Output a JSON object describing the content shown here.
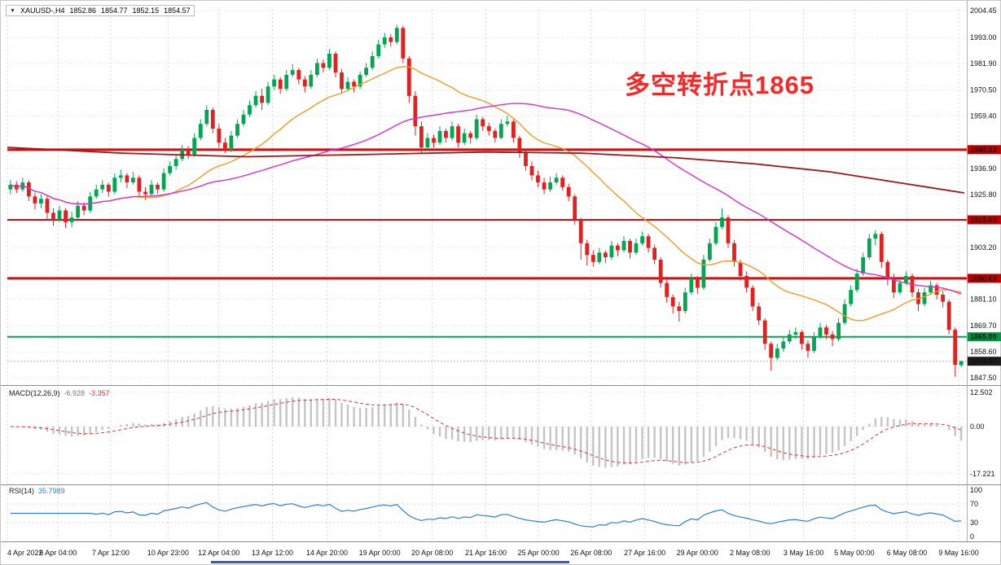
{
  "window": {
    "symbol": "XAUUSD-,H4",
    "open": "1852.86",
    "high": "1854.77",
    "low": "1852.15",
    "close": "1854.57",
    "dropdown_icon": "▼"
  },
  "annotation": {
    "text": "多空转折点1865",
    "color": "#f42a2a"
  },
  "indicators": {
    "macd": {
      "label": "MACD(12,26,9)",
      "value_main": "-6.928",
      "value_signal": "-3.357",
      "axis_labels": [
        "12.502",
        "0.00",
        "-17.221"
      ]
    },
    "rsi": {
      "label": "RSI(14)",
      "value": "35.7989",
      "axis_labels": [
        "100",
        "70",
        "30",
        "0"
      ]
    }
  },
  "price_axis": {
    "grid_labels": [
      "2004.45",
      "1993.00",
      "1981.90",
      "1970.50",
      "1959.40",
      "1936.90",
      "1925.80",
      "1903.20",
      "1881.10",
      "1869.70",
      "1858.60",
      "1847.50"
    ]
  },
  "levels": [
    {
      "label": "1945.00",
      "price": 1945.0,
      "line_color": "#cc0f0f",
      "box_color": "#c00000",
      "width": 3,
      "style": "solid",
      "type": "resistance"
    },
    {
      "label": "1915.00",
      "price": 1915.0,
      "line_color": "#cc0f0f",
      "box_color": "#c00000",
      "width": 2,
      "style": "solid",
      "type": "resistance"
    },
    {
      "label": "1890.00",
      "price": 1890.0,
      "line_color": "#cc0f0f",
      "box_color": "#c00000",
      "width": 3,
      "style": "solid",
      "type": "resistance"
    },
    {
      "label": "1865.00",
      "price": 1865.0,
      "line_color": "#00a651",
      "box_color": "#009442",
      "width": 2,
      "style": "solid",
      "type": "support"
    },
    {
      "label": "1854.57",
      "price": 1854.57,
      "line_color": "#b5b5b5",
      "box_color": "#1c1c1c",
      "width": 1,
      "style": "dotted",
      "type": "last-price"
    }
  ],
  "time_axis": {
    "labels": [
      {
        "text": "4 Apr 2022",
        "f": 0.0
      },
      {
        "text": "6 Apr 04:00",
        "f": 0.053
      },
      {
        "text": "7 Apr 12:00",
        "f": 0.108
      },
      {
        "text": "10 Apr 23:00",
        "f": 0.168
      },
      {
        "text": "12 Apr 04:00",
        "f": 0.221
      },
      {
        "text": "13 Apr 12:00",
        "f": 0.277
      },
      {
        "text": "14 Apr 20:00",
        "f": 0.334
      },
      {
        "text": "19 Apr 00:00",
        "f": 0.389
      },
      {
        "text": "20 Apr 08:00",
        "f": 0.444
      },
      {
        "text": "21 Apr 16:00",
        "f": 0.5
      },
      {
        "text": "25 Apr 00:00",
        "f": 0.555
      },
      {
        "text": "26 Apr 08:00",
        "f": 0.61
      },
      {
        "text": "27 Apr 16:00",
        "f": 0.666
      },
      {
        "text": "29 Apr 00:00",
        "f": 0.721
      },
      {
        "text": "2 May 08:00",
        "f": 0.776
      },
      {
        "text": "3 May 16:00",
        "f": 0.832
      },
      {
        "text": "5 May 00:00",
        "f": 0.885
      },
      {
        "text": "6 May 08:00",
        "f": 0.94
      },
      {
        "text": "9 May 16:00",
        "f": 0.994
      }
    ]
  },
  "scrollbar": {
    "color": "#3b55c4"
  },
  "chart_data": {
    "type": "candlestick",
    "title": "XAUUSD H4 candlestick chart with MACD(12,26,9) and RSI(14)",
    "symbol": "XAUUSD",
    "timeframe": "H4",
    "ylim": [
      1847.5,
      2004.45
    ],
    "up_color": "#00a651",
    "down_color": "#e32020",
    "candles": [
      [
        1928,
        1932,
        1926,
        1930
      ],
      [
        1930,
        1931.5,
        1926.5,
        1928
      ],
      [
        1928,
        1933,
        1927,
        1931
      ],
      [
        1931,
        1932,
        1923,
        1925
      ],
      [
        1925,
        1926.5,
        1919.5,
        1922
      ],
      [
        1922,
        1926,
        1920,
        1924
      ],
      [
        1924,
        1925,
        1915.5,
        1918
      ],
      [
        1918,
        1920,
        1912.5,
        1915
      ],
      [
        1915,
        1921,
        1914,
        1919
      ],
      [
        1919,
        1920,
        1911.5,
        1914
      ],
      [
        1914,
        1918.5,
        1912,
        1916
      ],
      [
        1916,
        1923,
        1915,
        1921
      ],
      [
        1921,
        1922.5,
        1917,
        1919
      ],
      [
        1919,
        1927,
        1918,
        1925
      ],
      [
        1925,
        1930,
        1924,
        1928
      ],
      [
        1928,
        1932,
        1926.5,
        1930
      ],
      [
        1930,
        1931,
        1925,
        1927
      ],
      [
        1927,
        1935,
        1926,
        1933
      ],
      [
        1933,
        1936.5,
        1931,
        1934
      ],
      [
        1934,
        1935,
        1928.5,
        1931
      ],
      [
        1931,
        1935.5,
        1930,
        1933
      ],
      [
        1933,
        1934,
        1925,
        1927
      ],
      [
        1927,
        1929,
        1923.5,
        1926
      ],
      [
        1926,
        1932,
        1925,
        1930
      ],
      [
        1930,
        1931,
        1926,
        1928
      ],
      [
        1928,
        1937,
        1927,
        1935
      ],
      [
        1935,
        1940,
        1934,
        1938
      ],
      [
        1938,
        1943,
        1936.5,
        1941
      ],
      [
        1941,
        1947,
        1940,
        1945
      ],
      [
        1945,
        1946.5,
        1941,
        1943
      ],
      [
        1943,
        1952,
        1942,
        1950
      ],
      [
        1950,
        1958,
        1949,
        1956
      ],
      [
        1956,
        1964,
        1955,
        1962
      ],
      [
        1962,
        1963,
        1952,
        1954
      ],
      [
        1954,
        1956,
        1946,
        1948
      ],
      [
        1948,
        1950,
        1943.5,
        1945
      ],
      [
        1945,
        1953,
        1944,
        1951
      ],
      [
        1951,
        1958,
        1950,
        1956
      ],
      [
        1956,
        1962,
        1955,
        1960
      ],
      [
        1960,
        1966,
        1959,
        1964
      ],
      [
        1964,
        1970,
        1963,
        1968
      ],
      [
        1968,
        1971,
        1962,
        1965
      ],
      [
        1965,
        1974,
        1964,
        1972
      ],
      [
        1972,
        1977,
        1970.5,
        1975
      ],
      [
        1975,
        1976,
        1969,
        1971
      ],
      [
        1971,
        1979,
        1970,
        1977
      ],
      [
        1977,
        1981.5,
        1976,
        1979
      ],
      [
        1979,
        1980,
        1973,
        1975
      ],
      [
        1975,
        1976.5,
        1969.5,
        1972
      ],
      [
        1972,
        1979,
        1971,
        1977
      ],
      [
        1977,
        1984,
        1976,
        1982
      ],
      [
        1982,
        1983.5,
        1978,
        1980
      ],
      [
        1980,
        1988,
        1979,
        1986
      ],
      [
        1986,
        1987,
        1976,
        1978
      ],
      [
        1978,
        1979.5,
        1969,
        1971
      ],
      [
        1971,
        1976,
        1970,
        1974
      ],
      [
        1974,
        1975,
        1969.5,
        1972
      ],
      [
        1972,
        1978.5,
        1971,
        1977
      ],
      [
        1977,
        1982,
        1976,
        1980
      ],
      [
        1980,
        1987,
        1979,
        1985
      ],
      [
        1985,
        1992,
        1984,
        1990
      ],
      [
        1990,
        1995,
        1988.5,
        1993
      ],
      [
        1993,
        1994.5,
        1989,
        1991
      ],
      [
        1991,
        1998.4,
        1990,
        1997
      ],
      [
        1997,
        1998,
        1982,
        1984
      ],
      [
        1984,
        1985,
        1965,
        1968
      ],
      [
        1968,
        1970,
        1951,
        1955
      ],
      [
        1955,
        1957,
        1943.5,
        1946
      ],
      [
        1946,
        1952,
        1945,
        1950
      ],
      [
        1950,
        1951.5,
        1946,
        1948
      ],
      [
        1948,
        1955,
        1947,
        1953
      ],
      [
        1953,
        1954,
        1948,
        1950
      ],
      [
        1950,
        1957,
        1949,
        1955
      ],
      [
        1955,
        1956,
        1946,
        1948
      ],
      [
        1948,
        1954,
        1947,
        1952
      ],
      [
        1952,
        1953,
        1947.5,
        1950
      ],
      [
        1950,
        1960,
        1949,
        1958
      ],
      [
        1958,
        1959,
        1953,
        1955
      ],
      [
        1955,
        1956.5,
        1951,
        1953
      ],
      [
        1953,
        1954,
        1948,
        1950
      ],
      [
        1950,
        1958,
        1949.5,
        1956
      ],
      [
        1956,
        1959.5,
        1955,
        1957
      ],
      [
        1957,
        1958,
        1948,
        1950
      ],
      [
        1950,
        1951,
        1941.5,
        1944
      ],
      [
        1944,
        1945.5,
        1936,
        1938
      ],
      [
        1938,
        1940,
        1932,
        1934
      ],
      [
        1934,
        1936,
        1929,
        1931
      ],
      [
        1931,
        1933,
        1926,
        1928
      ],
      [
        1928,
        1933.5,
        1927,
        1931
      ],
      [
        1931,
        1935,
        1930,
        1933
      ],
      [
        1933,
        1934,
        1927.5,
        1929
      ],
      [
        1929,
        1930.5,
        1923,
        1925
      ],
      [
        1925,
        1926,
        1913,
        1915
      ],
      [
        1915,
        1916,
        1898,
        1905
      ],
      [
        1905,
        1906.5,
        1895.5,
        1900
      ],
      [
        1900,
        1902,
        1895,
        1897
      ],
      [
        1897,
        1903,
        1896,
        1901
      ],
      [
        1901,
        1902,
        1896.5,
        1899
      ],
      [
        1899,
        1906,
        1898,
        1904
      ],
      [
        1904,
        1905,
        1899.5,
        1902
      ],
      [
        1902,
        1908,
        1901,
        1906
      ],
      [
        1906,
        1907,
        1898.5,
        1901
      ],
      [
        1901,
        1907,
        1900,
        1905
      ],
      [
        1905,
        1910,
        1904,
        1908
      ],
      [
        1908,
        1909,
        1901,
        1903
      ],
      [
        1903,
        1904.5,
        1896,
        1898
      ],
      [
        1898,
        1899,
        1886,
        1888
      ],
      [
        1888,
        1890,
        1879.5,
        1882
      ],
      [
        1882,
        1883,
        1875,
        1878
      ],
      [
        1878,
        1880,
        1871.5,
        1876
      ],
      [
        1876,
        1886,
        1875,
        1884
      ],
      [
        1884,
        1892,
        1883,
        1890
      ],
      [
        1890,
        1891,
        1883.5,
        1886
      ],
      [
        1886,
        1900,
        1885,
        1898
      ],
      [
        1898,
        1907,
        1897,
        1905
      ],
      [
        1905,
        1914,
        1904,
        1912
      ],
      [
        1912,
        1920,
        1911,
        1916
      ],
      [
        1916,
        1917,
        1903,
        1905
      ],
      [
        1905,
        1906.5,
        1895,
        1897
      ],
      [
        1897,
        1898,
        1889,
        1891
      ],
      [
        1891,
        1893,
        1884,
        1886
      ],
      [
        1886,
        1887,
        1876,
        1878
      ],
      [
        1878,
        1879.5,
        1870,
        1872
      ],
      [
        1872,
        1873,
        1859.5,
        1862
      ],
      [
        1862,
        1863,
        1850.5,
        1856
      ],
      [
        1856,
        1862,
        1855,
        1860
      ],
      [
        1860,
        1865,
        1858.5,
        1863
      ],
      [
        1863,
        1868,
        1862,
        1866
      ],
      [
        1866,
        1869,
        1864,
        1867
      ],
      [
        1867,
        1868,
        1859.5,
        1862
      ],
      [
        1862,
        1863.5,
        1856,
        1859
      ],
      [
        1859,
        1867,
        1858,
        1865
      ],
      [
        1865,
        1871,
        1864,
        1869
      ],
      [
        1869,
        1870,
        1864,
        1866
      ],
      [
        1866,
        1867.5,
        1861,
        1864
      ],
      [
        1864,
        1873,
        1863,
        1871
      ],
      [
        1871,
        1881,
        1870,
        1879
      ],
      [
        1879,
        1887,
        1878,
        1885
      ],
      [
        1885,
        1894,
        1884,
        1892
      ],
      [
        1892,
        1901,
        1891,
        1899
      ],
      [
        1899,
        1909,
        1898,
        1907
      ],
      [
        1907,
        1910.5,
        1904,
        1909
      ],
      [
        1909,
        1910,
        1894.5,
        1897
      ],
      [
        1897,
        1898,
        1887,
        1890
      ],
      [
        1890,
        1892,
        1881.5,
        1884
      ],
      [
        1884,
        1890,
        1883,
        1888
      ],
      [
        1888,
        1893,
        1887,
        1891
      ],
      [
        1891,
        1892,
        1882,
        1884
      ],
      [
        1884,
        1885.5,
        1876,
        1879
      ],
      [
        1879,
        1886,
        1878,
        1884
      ],
      [
        1884,
        1889,
        1883,
        1887
      ],
      [
        1887,
        1888,
        1881,
        1883
      ],
      [
        1883,
        1884.5,
        1877.5,
        1880
      ],
      [
        1880,
        1881,
        1866,
        1868
      ],
      [
        1868,
        1869,
        1848,
        1853
      ],
      [
        1852.86,
        1854.77,
        1852.15,
        1854.57
      ]
    ],
    "overlays": [
      {
        "name": "ma-fast",
        "period": 21,
        "color": "#f59a23"
      },
      {
        "name": "ma-slow",
        "period": 55,
        "color": "#d52fd5"
      }
    ],
    "trend_line": {
      "name": "ma-trend",
      "color": "#a21515",
      "points": [
        [
          0,
          1946
        ],
        [
          0.12,
          1943.5
        ],
        [
          0.25,
          1942
        ],
        [
          0.38,
          1943
        ],
        [
          0.5,
          1944
        ],
        [
          0.6,
          1943.5
        ],
        [
          0.7,
          1941.5
        ],
        [
          0.78,
          1939
        ],
        [
          0.86,
          1935.5
        ],
        [
          0.93,
          1931
        ],
        [
          1,
          1926.5
        ]
      ]
    },
    "macd": {
      "fast": 12,
      "slow": 26,
      "signal": 9,
      "ylim": [
        -17.221,
        12.502
      ]
    },
    "rsi": {
      "period": 14,
      "levels": [
        70,
        30
      ],
      "ylim": [
        0,
        100
      ]
    }
  }
}
